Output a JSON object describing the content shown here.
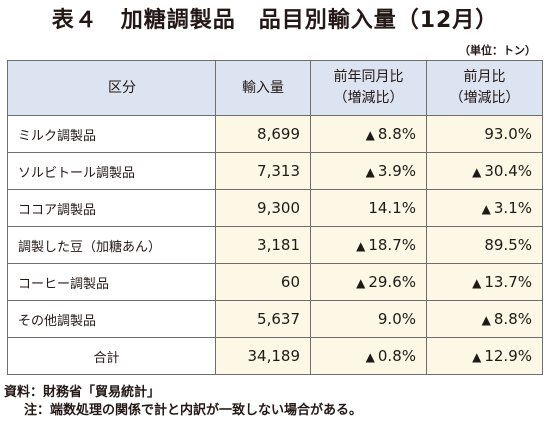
{
  "title": "表４　加糖調製品　品目別輸入量（12月）",
  "unit": "（単位：トン）",
  "table": {
    "headers": {
      "item": "区分",
      "volume": "輸入量",
      "yoy_line1": "前年同月比",
      "yoy_line2": "（増減比）",
      "mom_line1": "前月比",
      "mom_line2": "（増減比）"
    },
    "rows": [
      {
        "item": "ミルク調製品",
        "volume": "8,699",
        "yoy": "8.8%",
        "yoy_decrease": true,
        "mom": "93.0%",
        "mom_decrease": false
      },
      {
        "item": "ソルビトール調製品",
        "volume": "7,313",
        "yoy": "3.9%",
        "yoy_decrease": true,
        "mom": "30.4%",
        "mom_decrease": true
      },
      {
        "item": "ココア調製品",
        "volume": "9,300",
        "yoy": "14.1%",
        "yoy_decrease": false,
        "mom": "3.1%",
        "mom_decrease": true
      },
      {
        "item": "調製した豆（加糖あん）",
        "volume": "3,181",
        "yoy": "18.7%",
        "yoy_decrease": true,
        "mom": "89.5%",
        "mom_decrease": false
      },
      {
        "item": "コーヒー調製品",
        "volume": "60",
        "yoy": "29.6%",
        "yoy_decrease": true,
        "mom": "13.7%",
        "mom_decrease": true
      },
      {
        "item": "その他調製品",
        "volume": "5,637",
        "yoy": "9.0%",
        "yoy_decrease": false,
        "mom": "8.8%",
        "mom_decrease": true
      },
      {
        "item": "合計",
        "volume": "34,189",
        "yoy": "0.8%",
        "yoy_decrease": true,
        "mom": "12.9%",
        "mom_decrease": true
      }
    ]
  },
  "decrease_marker": "▲",
  "footer": {
    "source": "資料：財務省「貿易統計」",
    "note": "注：端数処理の関係で計と内訳が一致しない場合がある。"
  },
  "colors": {
    "header_bg": "#dde4f1",
    "value_bg": "#fdf8e6",
    "border": "#6e6e6e"
  }
}
